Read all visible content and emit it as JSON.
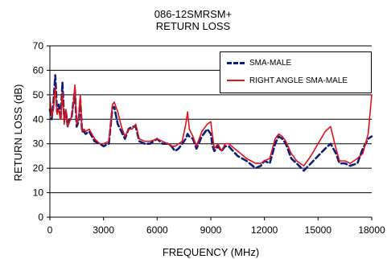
{
  "chart_data": {
    "type": "line",
    "title": "086-12SMRSM+",
    "subtitle": "RETURN LOSS",
    "xlabel": "FREQUENCY (MHz)",
    "ylabel": "RETURN LOSS (dB)",
    "xlim": [
      0,
      18000
    ],
    "ylim": [
      0,
      70
    ],
    "xticks": [
      0,
      3000,
      6000,
      9000,
      12000,
      15000,
      18000
    ],
    "yticks": [
      0,
      10,
      20,
      30,
      40,
      50,
      60,
      70
    ],
    "grid": "horizontal",
    "legend_position": "top-right",
    "series": [
      {
        "name": "SMA-MALE",
        "color": "#0b1f7a",
        "style": "dashed",
        "x": [
          0,
          100,
          200,
          300,
          400,
          500,
          600,
          700,
          800,
          900,
          1000,
          1100,
          1200,
          1300,
          1400,
          1500,
          1600,
          1700,
          1800,
          1900,
          2000,
          2200,
          2500,
          2800,
          3000,
          3300,
          3500,
          3600,
          3800,
          4000,
          4200,
          4400,
          4600,
          4800,
          5000,
          5300,
          5600,
          6000,
          6300,
          6600,
          6800,
          7000,
          7200,
          7400,
          7600,
          7700,
          7800,
          8000,
          8200,
          8500,
          8800,
          9000,
          9100,
          9200,
          9400,
          9600,
          9800,
          10000,
          10500,
          11000,
          11500,
          11800,
          12000,
          12300,
          12600,
          12800,
          13000,
          13200,
          13500,
          13800,
          14200,
          14600,
          15000,
          15400,
          15700,
          16000,
          16200,
          16500,
          16800,
          17200,
          17500,
          17800,
          18000
        ],
        "y": [
          44,
          40,
          47,
          58,
          43,
          46,
          40,
          55,
          40,
          43,
          37,
          40,
          40,
          46,
          52,
          37,
          39,
          48,
          35,
          35,
          34,
          35,
          31,
          30,
          29,
          30,
          45,
          45,
          38,
          35,
          32,
          36,
          37,
          37,
          31,
          30,
          30,
          32,
          30,
          30,
          29,
          27,
          28,
          30,
          32,
          34,
          33,
          32,
          28,
          33,
          36,
          34,
          29,
          27,
          29,
          27,
          29,
          29,
          25,
          23,
          20,
          21,
          23,
          22,
          30,
          33,
          32,
          30,
          24,
          22,
          19,
          22,
          25,
          28,
          30,
          26,
          22,
          22,
          21,
          22,
          28,
          32,
          33
        ]
      },
      {
        "name": "RIGHT ANGLE SMA-MALE",
        "color": "#e0121b",
        "style": "solid",
        "x": [
          0,
          100,
          200,
          300,
          400,
          500,
          600,
          700,
          800,
          900,
          1000,
          1100,
          1200,
          1300,
          1400,
          1500,
          1600,
          1700,
          1800,
          1900,
          2000,
          2200,
          2500,
          2800,
          3000,
          3300,
          3500,
          3600,
          3800,
          4000,
          4200,
          4400,
          4600,
          4800,
          5000,
          5300,
          5600,
          6000,
          6300,
          6600,
          6800,
          7000,
          7200,
          7400,
          7600,
          7700,
          7800,
          8000,
          8200,
          8500,
          8800,
          9000,
          9100,
          9200,
          9400,
          9600,
          9800,
          10000,
          10500,
          11000,
          11500,
          11800,
          12000,
          12300,
          12600,
          12800,
          13000,
          13200,
          13500,
          13800,
          14200,
          14600,
          15000,
          15400,
          15700,
          16000,
          16200,
          16500,
          16800,
          17200,
          17500,
          17800,
          18000
        ],
        "y": [
          49,
          41,
          44,
          53,
          42,
          44,
          40,
          51,
          38,
          44,
          37,
          39,
          41,
          45,
          54,
          38,
          40,
          50,
          35,
          36,
          35,
          36,
          32,
          30,
          30,
          31,
          46,
          47,
          43,
          37,
          33,
          36,
          36,
          38,
          32,
          31,
          31,
          32,
          31,
          30,
          29,
          29,
          30,
          31,
          38,
          43,
          36,
          33,
          29,
          35,
          38,
          39,
          33,
          28,
          30,
          27,
          30,
          30,
          27,
          24,
          22,
          22,
          23,
          24,
          32,
          34,
          33,
          31,
          26,
          23,
          21,
          25,
          30,
          35,
          37,
          28,
          23,
          23,
          22,
          24,
          26,
          34,
          50
        ]
      }
    ]
  }
}
